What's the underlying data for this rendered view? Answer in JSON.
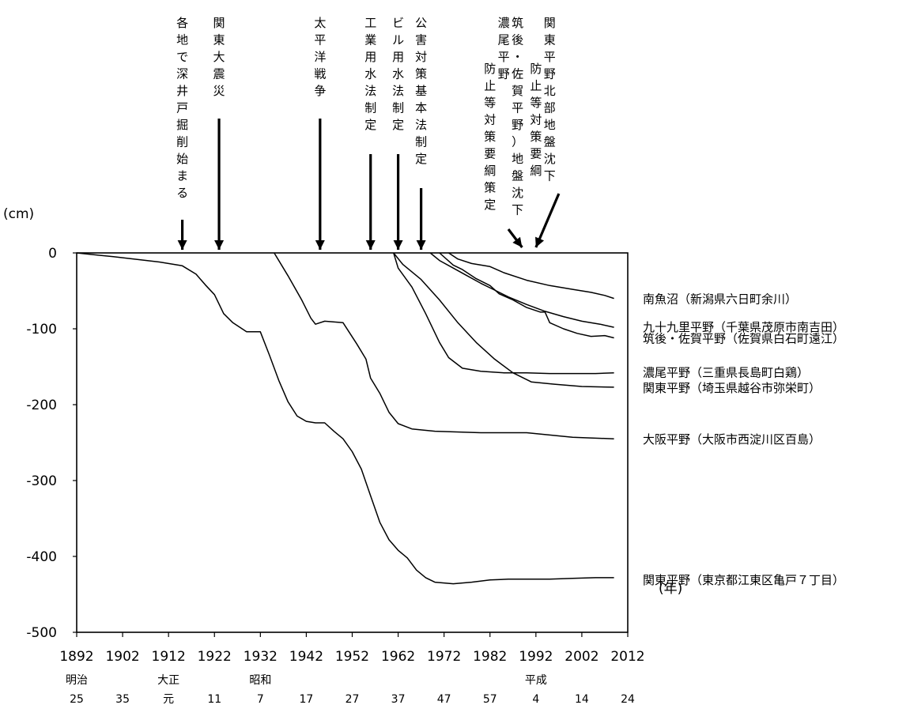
{
  "chart_data": {
    "type": "line",
    "ylabel": "(cm)",
    "xlabel": "(年)",
    "xlim": [
      1892,
      2012
    ],
    "ylim": [
      -500,
      0
    ],
    "grid": false,
    "x_ticks": [
      "1892",
      "1902",
      "1912",
      "1922",
      "1932",
      "1942",
      "1952",
      "1962",
      "1972",
      "1982",
      "1992",
      "2002",
      "2012"
    ],
    "y_ticks": [
      "0",
      "-100",
      "-200",
      "-300",
      "-400",
      "-500"
    ],
    "era_ticks": [
      {
        "era": "明治",
        "num": "25"
      },
      {
        "era": "",
        "num": "35"
      },
      {
        "era": "大正",
        "num": "元"
      },
      {
        "era": "",
        "num": "11"
      },
      {
        "era": "昭和",
        "num": "7"
      },
      {
        "era": "",
        "num": "17"
      },
      {
        "era": "",
        "num": "27"
      },
      {
        "era": "",
        "num": "37"
      },
      {
        "era": "",
        "num": "47"
      },
      {
        "era": "",
        "num": "57"
      },
      {
        "era": "平成",
        "num": "4"
      },
      {
        "era": "",
        "num": "14"
      },
      {
        "era": "",
        "num": "24"
      }
    ],
    "events": [
      {
        "year": 1915,
        "text": "各地で深井戸掘削始まる",
        "label_year": 1915,
        "arrow_top_y": 278
      },
      {
        "year": 1923,
        "text": "関東大震災",
        "label_year": 1923,
        "arrow_top_y": 150
      },
      {
        "year": 1945,
        "text": "太平洋戦争",
        "label_year": 1945,
        "arrow_top_y": 150
      },
      {
        "year": 1956,
        "text": "工業用水法制定",
        "label_year": 1956,
        "arrow_top_y": 195
      },
      {
        "year": 1962,
        "text": "ビル用水法制定",
        "label_year": 1962,
        "arrow_top_y": 195
      },
      {
        "year": 1967,
        "text": "公害対策基本法制定",
        "label_year": 1967,
        "arrow_top_y": 238
      }
    ],
    "policy_labels": [
      {
        "cols": [
          "濃尾平野",
          "防止等対策要綱策定"
        ],
        "col_years": [
          1985,
          1982
        ]
      },
      {
        "cols": [
          "筑後・佐賀平野）地盤沈下"
        ],
        "col_years": [
          1988
        ]
      },
      {
        "cols": [
          "関東平野北部地盤沈下",
          "防止等対策要綱"
        ],
        "col_years": [
          1995,
          1992
        ]
      }
    ],
    "policy_arrows": [
      {
        "from": [
          1986,
          290
        ],
        "to": [
          1989,
          313
        ]
      },
      {
        "from": [
          1997,
          245
        ],
        "to": [
          1992,
          313
        ]
      }
    ],
    "series": [
      {
        "name": "南魚沼（新潟県六日町余川）",
        "label_value": -60,
        "points": [
          [
            1973,
            0
          ],
          [
            1975,
            -8
          ],
          [
            1978,
            -14
          ],
          [
            1982,
            -18
          ],
          [
            1985,
            -26
          ],
          [
            1990,
            -36
          ],
          [
            1995,
            -43
          ],
          [
            2000,
            -48
          ],
          [
            2004,
            -52
          ],
          [
            2007,
            -56
          ],
          [
            2009,
            -60
          ]
        ]
      },
      {
        "name": "九十九里平野（千葉県茂原市南吉田）",
        "label_value": -97,
        "points": [
          [
            1969,
            0
          ],
          [
            1971,
            -10
          ],
          [
            1974,
            -20
          ],
          [
            1977,
            -30
          ],
          [
            1980,
            -40
          ],
          [
            1983,
            -49
          ],
          [
            1986,
            -58
          ],
          [
            1990,
            -68
          ],
          [
            1994,
            -77
          ],
          [
            1998,
            -84
          ],
          [
            2002,
            -90
          ],
          [
            2006,
            -94
          ],
          [
            2009,
            -98
          ]
        ]
      },
      {
        "name": "筑後・佐賀平野（佐賀県白石町遠江）",
        "label_value": -112,
        "points": [
          [
            1971,
            0
          ],
          [
            1974,
            -16
          ],
          [
            1976,
            -22
          ],
          [
            1979,
            -34
          ],
          [
            1982,
            -43
          ],
          [
            1984,
            -54
          ],
          [
            1987,
            -62
          ],
          [
            1990,
            -72
          ],
          [
            1993,
            -78
          ],
          [
            1994,
            -78
          ],
          [
            1995,
            -92
          ],
          [
            1998,
            -100
          ],
          [
            2001,
            -106
          ],
          [
            2004,
            -110
          ],
          [
            2007,
            -109
          ],
          [
            2009,
            -112
          ]
        ]
      },
      {
        "name": "濃尾平野（三重県長島町白鶏）",
        "label_value": -157,
        "points": [
          [
            1961,
            0
          ],
          [
            1962,
            -20
          ],
          [
            1965,
            -45
          ],
          [
            1968,
            -80
          ],
          [
            1971,
            -118
          ],
          [
            1973,
            -138
          ],
          [
            1976,
            -152
          ],
          [
            1980,
            -156
          ],
          [
            1985,
            -158
          ],
          [
            1990,
            -158
          ],
          [
            1995,
            -159
          ],
          [
            2000,
            -159
          ],
          [
            2005,
            -159
          ],
          [
            2009,
            -158
          ]
        ]
      },
      {
        "name": "関東平野（埼玉県越谷市弥栄町）",
        "label_value": -177,
        "points": [
          [
            1961,
            0
          ],
          [
            1963,
            -15
          ],
          [
            1967,
            -35
          ],
          [
            1971,
            -62
          ],
          [
            1975,
            -92
          ],
          [
            1979,
            -118
          ],
          [
            1983,
            -140
          ],
          [
            1987,
            -158
          ],
          [
            1991,
            -170
          ],
          [
            1996,
            -173
          ],
          [
            2002,
            -176
          ],
          [
            2009,
            -177
          ]
        ]
      },
      {
        "name": "大阪平野（大阪市西淀川区百島）",
        "label_value": -245,
        "points": [
          [
            1935,
            0
          ],
          [
            1938,
            -30
          ],
          [
            1941,
            -62
          ],
          [
            1943,
            -86
          ],
          [
            1944,
            -94
          ],
          [
            1946,
            -90
          ],
          [
            1950,
            -92
          ],
          [
            1953,
            -120
          ],
          [
            1955,
            -140
          ],
          [
            1956,
            -165
          ],
          [
            1958,
            -185
          ],
          [
            1960,
            -210
          ],
          [
            1962,
            -225
          ],
          [
            1965,
            -232
          ],
          [
            1970,
            -235
          ],
          [
            1980,
            -237
          ],
          [
            1990,
            -237
          ],
          [
            2000,
            -243
          ],
          [
            2009,
            -245
          ]
        ]
      },
      {
        "name": "関東平野（東京都江東区亀戸７丁目）",
        "label_value": -430,
        "points": [
          [
            1892,
            0
          ],
          [
            1900,
            -5
          ],
          [
            1910,
            -12
          ],
          [
            1915,
            -17
          ],
          [
            1918,
            -28
          ],
          [
            1920,
            -42
          ],
          [
            1922,
            -55
          ],
          [
            1924,
            -80
          ],
          [
            1926,
            -92
          ],
          [
            1929,
            -104
          ],
          [
            1932,
            -104
          ],
          [
            1934,
            -135
          ],
          [
            1936,
            -168
          ],
          [
            1938,
            -196
          ],
          [
            1940,
            -215
          ],
          [
            1942,
            -222
          ],
          [
            1944,
            -224
          ],
          [
            1946,
            -224
          ],
          [
            1948,
            -235
          ],
          [
            1950,
            -245
          ],
          [
            1952,
            -262
          ],
          [
            1954,
            -285
          ],
          [
            1956,
            -320
          ],
          [
            1958,
            -355
          ],
          [
            1960,
            -378
          ],
          [
            1962,
            -392
          ],
          [
            1964,
            -402
          ],
          [
            1966,
            -418
          ],
          [
            1968,
            -428
          ],
          [
            1970,
            -434
          ],
          [
            1974,
            -436
          ],
          [
            1978,
            -434
          ],
          [
            1982,
            -431
          ],
          [
            1986,
            -430
          ],
          [
            1990,
            -430
          ],
          [
            1995,
            -430
          ],
          [
            2000,
            -429
          ],
          [
            2005,
            -428
          ],
          [
            2009,
            -428
          ]
        ]
      }
    ]
  }
}
